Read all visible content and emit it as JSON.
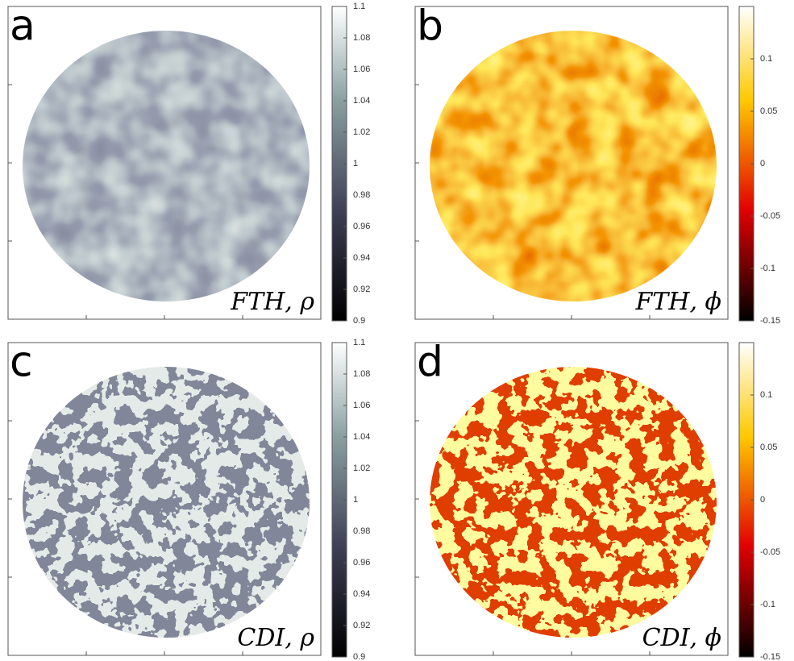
{
  "panels": [
    {
      "label": "a",
      "caption": "FTH, ρ",
      "colormap": "gray",
      "colorbar": {
        "lim": [
          0.9,
          1.1
        ],
        "ticks": [
          0.9,
          0.92,
          0.94,
          0.96,
          0.98,
          1,
          1.02,
          1.04,
          1.06,
          1.08,
          1.1
        ]
      }
    },
    {
      "label": "b",
      "caption": "FTH, ϕ",
      "colormap": "hot",
      "colorbar": {
        "lim": [
          -0.15,
          0.15
        ],
        "ticks": [
          -0.15,
          -0.1,
          -0.05,
          0,
          0.05,
          0.1
        ]
      }
    },
    {
      "label": "c",
      "caption": "CDI, ρ",
      "colormap": "gray",
      "colorbar": {
        "lim": [
          0.9,
          1.1
        ],
        "ticks": [
          0.9,
          0.92,
          0.94,
          0.96,
          0.98,
          1,
          1.02,
          1.04,
          1.06,
          1.08,
          1.1
        ]
      }
    },
    {
      "label": "d",
      "caption": "CDI, ϕ",
      "colormap": "hot",
      "colorbar": {
        "lim": [
          -0.15,
          0.15
        ],
        "ticks": [
          -0.15,
          -0.1,
          -0.05,
          0,
          0.05,
          0.1
        ]
      }
    }
  ]
}
